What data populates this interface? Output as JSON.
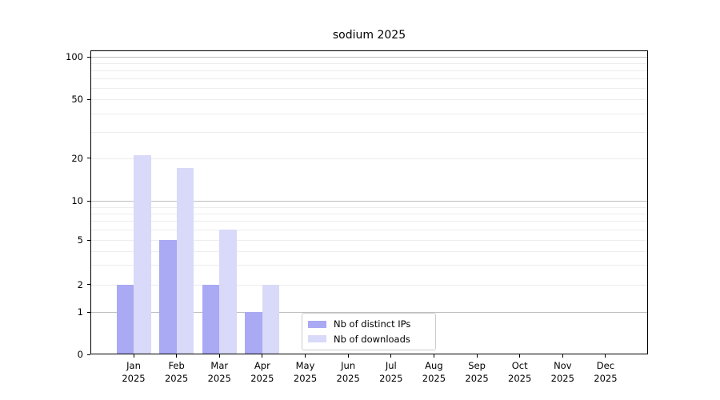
{
  "chart_data": {
    "type": "bar",
    "title": "sodium 2025",
    "year": "2025",
    "categories": [
      "Jan",
      "Feb",
      "Mar",
      "Apr",
      "May",
      "Jun",
      "Jul",
      "Aug",
      "Sep",
      "Oct",
      "Nov",
      "Dec"
    ],
    "series": [
      {
        "name": "Nb of distinct IPs",
        "color": "#a9a9f4",
        "values": [
          2,
          5,
          2,
          1,
          0,
          0,
          0,
          0,
          0,
          0,
          0,
          0
        ]
      },
      {
        "name": "Nb of downloads",
        "color": "#d9d9f9",
        "values": [
          21,
          17,
          6,
          2,
          0,
          0,
          0,
          0,
          0,
          0,
          0,
          0
        ]
      }
    ],
    "y_axis": {
      "ticks": [
        0,
        1,
        2,
        5,
        10,
        20,
        50,
        100
      ],
      "scale": "log (with 0 baseline)",
      "ylim": [
        0,
        112
      ]
    },
    "grid": {
      "horizontal": true,
      "minor_log_lines": true
    },
    "legend": {
      "position": "bottom-center"
    }
  }
}
